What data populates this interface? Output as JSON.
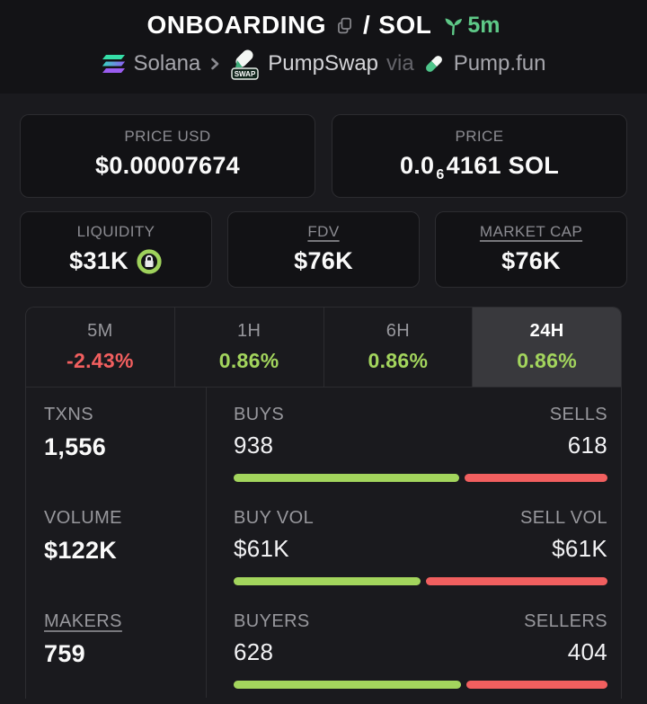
{
  "header": {
    "title_base": "ONBOARDING",
    "title_separator": "/",
    "title_quote": "SOL",
    "age": "5m",
    "chain_label": "Solana",
    "dex_label": "PumpSwap",
    "via_label": "via",
    "launchpad_label": "Pump.fun",
    "swap_badge": "SWAP"
  },
  "price_usd": {
    "label": "PRICE USD",
    "value": "$0.00007674"
  },
  "price_native": {
    "label": "PRICE",
    "prefix": "0.0",
    "zeros_sub": "6",
    "suffix": "4161 SOL"
  },
  "metrics": {
    "liquidity": {
      "label": "LIQUIDITY",
      "value": "$31K",
      "locked": true
    },
    "fdv": {
      "label": "FDV",
      "value": "$76K"
    },
    "market_cap": {
      "label": "MARKET CAP",
      "value": "$76K"
    }
  },
  "timeframes": [
    {
      "label": "5M",
      "change": "-2.43%",
      "direction": "down",
      "selected": false
    },
    {
      "label": "1H",
      "change": "0.86%",
      "direction": "up",
      "selected": false
    },
    {
      "label": "6H",
      "change": "0.86%",
      "direction": "up",
      "selected": false
    },
    {
      "label": "24H",
      "change": "0.86%",
      "direction": "up",
      "selected": true
    }
  ],
  "stats": [
    {
      "label": "TXNS",
      "value": "1,556",
      "left_label": "BUYS",
      "left_value": "938",
      "right_label": "SELLS",
      "right_value": "618",
      "left_pct": 60.3
    },
    {
      "label": "VOLUME",
      "value": "$122K",
      "left_label": "BUY VOL",
      "left_value": "$61K",
      "right_label": "SELL VOL",
      "right_value": "$61K",
      "left_pct": 50
    },
    {
      "label": "MAKERS",
      "value": "759",
      "left_label": "BUYERS",
      "left_value": "628",
      "right_label": "SELLERS",
      "right_value": "404",
      "left_pct": 60.9
    }
  ],
  "colors": {
    "buy_green": "#a3d55d",
    "sell_red": "#f15f5f",
    "age_green": "#5ec887",
    "lock_ring_green": "#9fd25c",
    "selected_tab_bg": "#39393d",
    "panel_border": "#2c2c30"
  }
}
